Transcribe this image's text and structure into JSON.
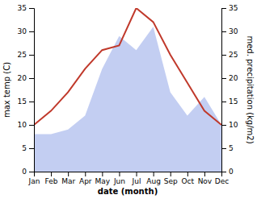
{
  "chart_data": {
    "type": "line",
    "categories": [
      "Jan",
      "Feb",
      "Mar",
      "Apr",
      "May",
      "Jun",
      "Jul",
      "Aug",
      "Sep",
      "Oct",
      "Nov",
      "Dec"
    ],
    "xlabel": "date (month)",
    "ylabel": "max temp (C)",
    "y2label": "med. precipitation (kg/m2)",
    "series": [
      {
        "type": "area",
        "axis": "y2",
        "color": "#b8c5f0",
        "values": [
          8,
          8,
          9,
          12,
          22,
          29,
          26,
          31,
          17,
          12,
          16,
          10
        ]
      },
      {
        "type": "line",
        "color": "#c0392b",
        "values": [
          10,
          13,
          17,
          22,
          26,
          27,
          35,
          32,
          25,
          19,
          13,
          10
        ]
      }
    ],
    "ylim": [
      0,
      35
    ],
    "yticks": [
      0,
      5,
      10,
      15,
      20,
      25,
      30,
      35
    ],
    "y2lim": [
      0,
      35
    ],
    "y2ticks": [
      0,
      5,
      10,
      15,
      20,
      25,
      30,
      35
    ]
  }
}
